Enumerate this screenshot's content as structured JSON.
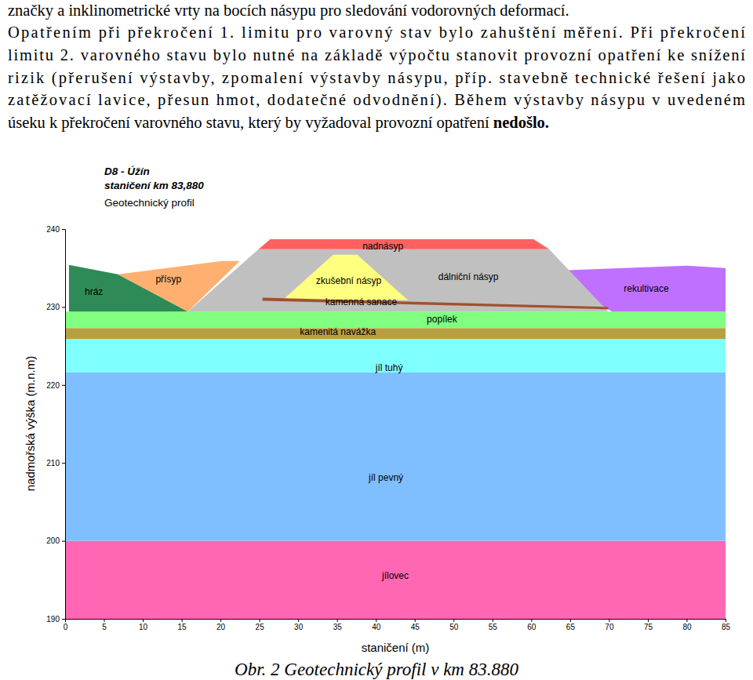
{
  "paragraph": [
    {
      "text": "značky a inklinometrické vrty na bocích násypu pro sledování vodorovných deformací."
    },
    {
      "text": "Opatřením při překročení 1. limitu pro varovný stav bylo zahuštění měření. Při překročení"
    },
    {
      "text": "limitu 2. varovného stavu bylo nutné na základě výpočtu stanovit provozní opatření ke snížení"
    },
    {
      "text": "rizik (přerušení výstavby, zpomalení výstavby násypu, příp. stavebně technické řešení jako"
    },
    {
      "text": "zatěžovací lavice, přesun hmot, dodatečné odvodnění). Během výstavby násypu v uvedeném"
    },
    {
      "text": "úseku k překročení varovného stavu, který by vyžadoval provozní opatření ",
      "strong": "nedošlo."
    }
  ],
  "chart_data": {
    "type": "area",
    "title": [
      "D8 - Úžín",
      "staničení km 83,880"
    ],
    "subtitle": "Geotechnický profil",
    "xlabel": "staničení (m)",
    "ylabel": "nadmořská výška (m.n.m)",
    "xlim": [
      0,
      85
    ],
    "ylim": [
      190,
      240
    ],
    "xticks": [
      0,
      5,
      10,
      15,
      20,
      25,
      30,
      35,
      40,
      45,
      50,
      55,
      60,
      65,
      70,
      75,
      80,
      85
    ],
    "yticks": [
      190,
      200,
      210,
      220,
      230,
      240
    ],
    "grid": false,
    "series": [
      {
        "name": "jílovec",
        "color": "#ff66b3",
        "x": [
          0,
          85,
          85,
          0
        ],
        "values": [
          190,
          190,
          200,
          200
        ],
        "label_at": [
          42.5,
          195.4
        ]
      },
      {
        "name": "jíl pevný",
        "color": "#80bfff",
        "x": [
          0,
          85,
          85,
          0
        ],
        "values": [
          200,
          200,
          221.6,
          221.6
        ],
        "label_at": [
          41.3,
          208
        ]
      },
      {
        "name": "jíl tuhý",
        "color": "#80ffff",
        "x": [
          0,
          85,
          85,
          0
        ],
        "values": [
          221.6,
          221.6,
          225.9,
          225.9
        ],
        "label_at": [
          41.7,
          222.1
        ]
      },
      {
        "name": "kamenitá navážka",
        "color": "#b8a040",
        "x": [
          0,
          85,
          85,
          0
        ],
        "values": [
          225.9,
          225.9,
          227.3,
          227.3
        ],
        "label_at": [
          35.1,
          226.7
        ]
      },
      {
        "name": "popílek",
        "color": "#80ff80",
        "x": [
          0,
          85,
          85,
          0
        ],
        "values": [
          227.3,
          227.3,
          229.4,
          229.4
        ],
        "label_at": [
          48.5,
          228.3
        ]
      },
      {
        "name": "rekultivace",
        "color": "#c070ff",
        "x": [
          61.3,
          80,
          85,
          85,
          70.4
        ],
        "values": [
          234.6,
          235.3,
          235,
          229.4,
          229.4
        ],
        "label_at": [
          74.8,
          232.3
        ]
      },
      {
        "name": "hráz",
        "color": "#2e8b57",
        "x": [
          0.5,
          6.8,
          15.8,
          0.5
        ],
        "values": [
          235.4,
          234.2,
          229.4,
          229.4
        ],
        "label_at": [
          3.7,
          231.9
        ]
      },
      {
        "name": "přísyp",
        "color": "#ffb070",
        "x": [
          6.8,
          20.2,
          22.5,
          15.8
        ],
        "values": [
          234.2,
          235.9,
          235.9,
          229.4
        ],
        "label_at": [
          13.3,
          233.5
        ]
      },
      {
        "name": "dálniční násyp",
        "color": "#c0c0c0",
        "x": [
          15.8,
          24.9,
          62.3,
          69.9
        ],
        "values": [
          229.4,
          237.4,
          237.4,
          229.4
        ],
        "label_at": [
          51.9,
          233.8
        ]
      },
      {
        "name": "nadnásyp",
        "color": "#ff6060",
        "x": [
          24.9,
          26.4,
          60.3,
          62.3
        ],
        "values": [
          237.4,
          238.7,
          238.7,
          237.4
        ],
        "label_at": [
          40.9,
          237.7
        ]
      },
      {
        "name": "zkušební násyp",
        "color": "#ffff80",
        "x": [
          28,
          34.5,
          37.6,
          44.1
        ],
        "values": [
          230.9,
          236.7,
          236.7,
          230.9
        ],
        "label_at": [
          36.5,
          233.3
        ]
      },
      {
        "name": "kamenná sanace",
        "color": "#a0522d",
        "x": [
          25.4,
          69.9,
          69.9,
          25.4
        ],
        "values": [
          231.2,
          230,
          229.7,
          230.8
        ],
        "label_at": [
          38.1,
          230.6
        ]
      }
    ]
  },
  "caption": "Obr. 2 Geotechnický profil v km 83.880"
}
